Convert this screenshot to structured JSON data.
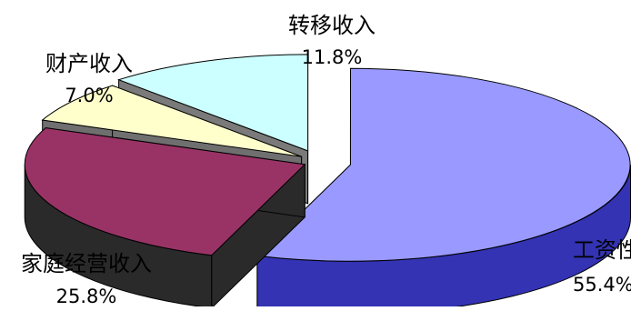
{
  "chart_data": {
    "type": "pie",
    "title": "",
    "legend": "none",
    "slices": [
      {
        "label": "工资性收入",
        "value": 55.4,
        "percent_text": "55.4%",
        "colors": {
          "top": "#9999ff",
          "side": "#3333b3"
        }
      },
      {
        "label": "家庭经营收入",
        "value": 25.8,
        "percent_text": "25.8%",
        "colors": {
          "top": "#993366",
          "side": "#2a2a2a"
        }
      },
      {
        "label": "财产收入",
        "value": 7.0,
        "percent_text": "7.0%",
        "colors": {
          "top": "#ffffcc",
          "side": "#6f6f6f"
        }
      },
      {
        "label": "转移收入",
        "value": 11.8,
        "percent_text": "11.8%",
        "colors": {
          "top": "#ccffff",
          "side": "#7a7a7a"
        }
      }
    ]
  }
}
